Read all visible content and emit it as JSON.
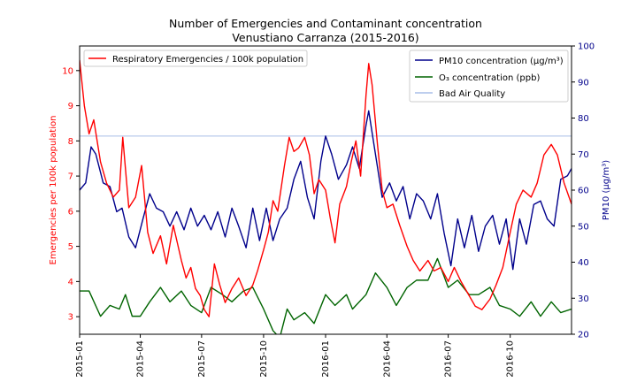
{
  "chart_data": {
    "type": "line",
    "title": [
      "Number of Emergencies and Contaminant concentration",
      "Venustiano Carranza (2015-2016)"
    ],
    "x_tick_labels": [
      "2015-01",
      "2015-04",
      "2015-07",
      "2015-10",
      "2016-01",
      "2016-04",
      "2016-07",
      "2016-10"
    ],
    "x_range": [
      "2015-01-01",
      "2016-12-31"
    ],
    "y_left": {
      "label": "Emergencies per 100k population",
      "ticks": [
        "3",
        "4",
        "5",
        "6",
        "7",
        "8",
        "9",
        "10"
      ],
      "range": [
        2.5,
        10.7
      ],
      "color": "#ff0000"
    },
    "y_right": {
      "label": "PM10 (µg/m³)",
      "ticks": [
        "20",
        "30",
        "40",
        "50",
        "60",
        "70",
        "80",
        "90",
        "100"
      ],
      "range": [
        20,
        100
      ],
      "color": "#00008b"
    },
    "legend_left": {
      "position": "top-left",
      "items": [
        "Respiratory Emergencies / 100k population"
      ]
    },
    "legend_right": {
      "position": "top-right",
      "items": [
        "PM10 concentration (µg/m³)",
        "O₃ concentration (ppb)",
        "Bad Air Quality"
      ]
    },
    "series": [
      {
        "name": "Respiratory Emergencies / 100k population",
        "axis": "left",
        "color": "#ff0000",
        "points": [
          [
            "2015-01-01",
            10.3
          ],
          [
            "2015-01-08",
            9.0
          ],
          [
            "2015-01-15",
            8.2
          ],
          [
            "2015-01-22",
            8.6
          ],
          [
            "2015-02-01",
            7.4
          ],
          [
            "2015-02-10",
            6.8
          ],
          [
            "2015-02-20",
            6.4
          ],
          [
            "2015-03-01",
            6.6
          ],
          [
            "2015-03-06",
            8.1
          ],
          [
            "2015-03-15",
            6.1
          ],
          [
            "2015-03-25",
            6.4
          ],
          [
            "2015-04-03",
            7.3
          ],
          [
            "2015-04-12",
            5.4
          ],
          [
            "2015-04-20",
            4.8
          ],
          [
            "2015-05-01",
            5.3
          ],
          [
            "2015-05-10",
            4.5
          ],
          [
            "2015-05-20",
            5.6
          ],
          [
            "2015-06-01",
            4.6
          ],
          [
            "2015-06-08",
            4.1
          ],
          [
            "2015-06-15",
            4.4
          ],
          [
            "2015-06-22",
            3.8
          ],
          [
            "2015-06-29",
            3.6
          ],
          [
            "2015-07-05",
            3.2
          ],
          [
            "2015-07-12",
            3.0
          ],
          [
            "2015-07-20",
            4.5
          ],
          [
            "2015-07-28",
            3.9
          ],
          [
            "2015-08-05",
            3.4
          ],
          [
            "2015-08-15",
            3.8
          ],
          [
            "2015-08-25",
            4.1
          ],
          [
            "2015-09-05",
            3.6
          ],
          [
            "2015-09-15",
            3.9
          ],
          [
            "2015-09-22",
            4.3
          ],
          [
            "2015-10-01",
            4.9
          ],
          [
            "2015-10-08",
            5.4
          ],
          [
            "2015-10-15",
            6.3
          ],
          [
            "2015-10-22",
            6.0
          ],
          [
            "2015-11-01",
            7.3
          ],
          [
            "2015-11-08",
            8.1
          ],
          [
            "2015-11-15",
            7.7
          ],
          [
            "2015-11-22",
            7.8
          ],
          [
            "2015-12-01",
            8.1
          ],
          [
            "2015-12-08",
            7.6
          ],
          [
            "2015-12-15",
            6.5
          ],
          [
            "2015-12-22",
            6.9
          ],
          [
            "2016-01-01",
            6.6
          ],
          [
            "2016-01-08",
            5.8
          ],
          [
            "2016-01-15",
            5.1
          ],
          [
            "2016-01-22",
            6.2
          ],
          [
            "2016-02-01",
            6.7
          ],
          [
            "2016-02-08",
            7.4
          ],
          [
            "2016-02-15",
            8.0
          ],
          [
            "2016-02-22",
            7.0
          ],
          [
            "2016-03-01",
            9.3
          ],
          [
            "2016-03-05",
            10.2
          ],
          [
            "2016-03-10",
            9.6
          ],
          [
            "2016-03-18",
            7.9
          ],
          [
            "2016-03-25",
            6.6
          ],
          [
            "2016-04-01",
            6.1
          ],
          [
            "2016-04-10",
            6.2
          ],
          [
            "2016-04-20",
            5.6
          ],
          [
            "2016-05-01",
            5.0
          ],
          [
            "2016-05-10",
            4.6
          ],
          [
            "2016-05-20",
            4.3
          ],
          [
            "2016-06-01",
            4.6
          ],
          [
            "2016-06-10",
            4.3
          ],
          [
            "2016-06-20",
            4.4
          ],
          [
            "2016-07-01",
            4.0
          ],
          [
            "2016-07-10",
            4.4
          ],
          [
            "2016-07-20",
            4.0
          ],
          [
            "2016-08-01",
            3.6
          ],
          [
            "2016-08-10",
            3.3
          ],
          [
            "2016-08-20",
            3.2
          ],
          [
            "2016-09-01",
            3.5
          ],
          [
            "2016-09-10",
            3.9
          ],
          [
            "2016-09-20",
            4.4
          ],
          [
            "2016-10-01",
            5.4
          ],
          [
            "2016-10-10",
            6.2
          ],
          [
            "2016-10-20",
            6.6
          ],
          [
            "2016-11-01",
            6.4
          ],
          [
            "2016-11-10",
            6.8
          ],
          [
            "2016-11-20",
            7.6
          ],
          [
            "2016-12-01",
            7.9
          ],
          [
            "2016-12-10",
            7.6
          ],
          [
            "2016-12-20",
            6.8
          ],
          [
            "2016-12-31",
            6.2
          ]
        ]
      },
      {
        "name": "PM10 concentration (µg/m³)",
        "axis": "right",
        "color": "#00008b",
        "points": [
          [
            "2015-01-01",
            60
          ],
          [
            "2015-01-10",
            62
          ],
          [
            "2015-01-18",
            72
          ],
          [
            "2015-01-25",
            70
          ],
          [
            "2015-02-05",
            62
          ],
          [
            "2015-02-15",
            61
          ],
          [
            "2015-02-25",
            54
          ],
          [
            "2015-03-05",
            55
          ],
          [
            "2015-03-15",
            47
          ],
          [
            "2015-03-25",
            44
          ],
          [
            "2015-04-05",
            52
          ],
          [
            "2015-04-15",
            59
          ],
          [
            "2015-04-25",
            55
          ],
          [
            "2015-05-05",
            54
          ],
          [
            "2015-05-15",
            50
          ],
          [
            "2015-05-25",
            54
          ],
          [
            "2015-06-05",
            49
          ],
          [
            "2015-06-15",
            55
          ],
          [
            "2015-06-25",
            50
          ],
          [
            "2015-07-05",
            53
          ],
          [
            "2015-07-15",
            49
          ],
          [
            "2015-07-25",
            54
          ],
          [
            "2015-08-05",
            47
          ],
          [
            "2015-08-15",
            55
          ],
          [
            "2015-08-25",
            50
          ],
          [
            "2015-09-05",
            44
          ],
          [
            "2015-09-15",
            55
          ],
          [
            "2015-09-25",
            46
          ],
          [
            "2015-10-05",
            55
          ],
          [
            "2015-10-15",
            46
          ],
          [
            "2015-10-25",
            52
          ],
          [
            "2015-11-05",
            55
          ],
          [
            "2015-11-15",
            63
          ],
          [
            "2015-11-25",
            68
          ],
          [
            "2015-12-05",
            58
          ],
          [
            "2015-12-15",
            52
          ],
          [
            "2015-12-25",
            68
          ],
          [
            "2016-01-01",
            75
          ],
          [
            "2016-01-10",
            70
          ],
          [
            "2016-01-20",
            63
          ],
          [
            "2016-02-01",
            67
          ],
          [
            "2016-02-10",
            72
          ],
          [
            "2016-02-20",
            66
          ],
          [
            "2016-03-01",
            78
          ],
          [
            "2016-03-05",
            82
          ],
          [
            "2016-03-15",
            70
          ],
          [
            "2016-03-25",
            58
          ],
          [
            "2016-04-05",
            62
          ],
          [
            "2016-04-15",
            57
          ],
          [
            "2016-04-25",
            61
          ],
          [
            "2016-05-05",
            52
          ],
          [
            "2016-05-15",
            59
          ],
          [
            "2016-05-25",
            57
          ],
          [
            "2016-06-05",
            52
          ],
          [
            "2016-06-15",
            59
          ],
          [
            "2016-06-25",
            48
          ],
          [
            "2016-07-05",
            39
          ],
          [
            "2016-07-15",
            52
          ],
          [
            "2016-07-25",
            44
          ],
          [
            "2016-08-05",
            53
          ],
          [
            "2016-08-15",
            43
          ],
          [
            "2016-08-25",
            50
          ],
          [
            "2016-09-05",
            53
          ],
          [
            "2016-09-15",
            45
          ],
          [
            "2016-09-25",
            52
          ],
          [
            "2016-10-05",
            38
          ],
          [
            "2016-10-15",
            52
          ],
          [
            "2016-10-25",
            45
          ],
          [
            "2016-11-05",
            56
          ],
          [
            "2016-11-15",
            57
          ],
          [
            "2016-11-25",
            52
          ],
          [
            "2016-12-05",
            50
          ],
          [
            "2016-12-15",
            63
          ],
          [
            "2016-12-25",
            64
          ],
          [
            "2016-12-31",
            66
          ]
        ]
      },
      {
        "name": "O₃ concentration (ppb)",
        "axis": "right",
        "color": "#006400",
        "points": [
          [
            "2015-01-01",
            32
          ],
          [
            "2015-01-15",
            32
          ],
          [
            "2015-02-01",
            25
          ],
          [
            "2015-02-15",
            28
          ],
          [
            "2015-03-01",
            27
          ],
          [
            "2015-03-10",
            31
          ],
          [
            "2015-03-20",
            25
          ],
          [
            "2015-04-01",
            25
          ],
          [
            "2015-04-15",
            29
          ],
          [
            "2015-05-01",
            33
          ],
          [
            "2015-05-15",
            29
          ],
          [
            "2015-06-01",
            32
          ],
          [
            "2015-06-15",
            28
          ],
          [
            "2015-07-01",
            26
          ],
          [
            "2015-07-15",
            33
          ],
          [
            "2015-08-01",
            31
          ],
          [
            "2015-08-15",
            29
          ],
          [
            "2015-09-01",
            32
          ],
          [
            "2015-09-15",
            33
          ],
          [
            "2015-10-01",
            27
          ],
          [
            "2015-10-15",
            21
          ],
          [
            "2015-10-25",
            19
          ],
          [
            "2015-11-05",
            27
          ],
          [
            "2015-11-15",
            24
          ],
          [
            "2015-12-01",
            26
          ],
          [
            "2015-12-15",
            23
          ],
          [
            "2016-01-01",
            31
          ],
          [
            "2016-01-15",
            28
          ],
          [
            "2016-02-01",
            31
          ],
          [
            "2016-02-10",
            27
          ],
          [
            "2016-03-01",
            31
          ],
          [
            "2016-03-15",
            37
          ],
          [
            "2016-04-01",
            33
          ],
          [
            "2016-04-15",
            28
          ],
          [
            "2016-05-01",
            33
          ],
          [
            "2016-05-15",
            35
          ],
          [
            "2016-06-01",
            35
          ],
          [
            "2016-06-15",
            41
          ],
          [
            "2016-07-01",
            33
          ],
          [
            "2016-07-15",
            35
          ],
          [
            "2016-08-01",
            31
          ],
          [
            "2016-08-15",
            31
          ],
          [
            "2016-09-01",
            33
          ],
          [
            "2016-09-15",
            28
          ],
          [
            "2016-10-01",
            27
          ],
          [
            "2016-10-15",
            25
          ],
          [
            "2016-11-01",
            29
          ],
          [
            "2016-11-15",
            25
          ],
          [
            "2016-12-01",
            29
          ],
          [
            "2016-12-15",
            26
          ],
          [
            "2016-12-31",
            27
          ]
        ]
      },
      {
        "name": "Bad Air Quality",
        "axis": "right",
        "color": "#a8bde8",
        "points": [
          [
            "2015-01-01",
            75
          ],
          [
            "2016-12-31",
            75
          ]
        ]
      }
    ]
  }
}
